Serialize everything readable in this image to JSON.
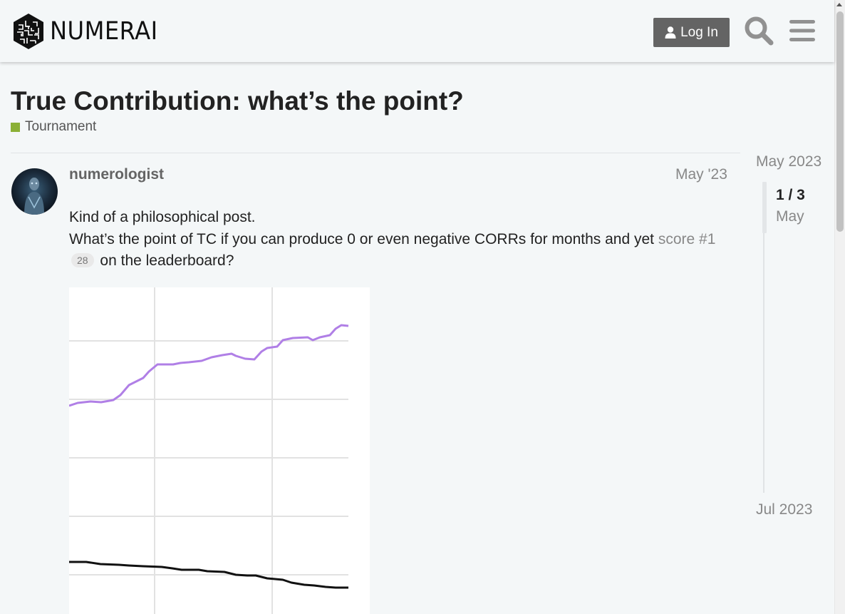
{
  "header": {
    "logo_text": "NUMERAI",
    "login_label": "Log In"
  },
  "topic": {
    "title": "True Contribution: what’s the point?",
    "category": "Tournament",
    "category_color": "#8bb036"
  },
  "post": {
    "username": "numerologist",
    "date": "May '23",
    "line1": "Kind of a philosophical post.",
    "line2_before": "What’s the point of TC if you can produce 0 or even negative CORRs for months and yet ",
    "link_text": "score #1",
    "link_clicks": "28",
    "line2_after": " on the leaderboard?"
  },
  "timeline": {
    "start_label": "May 2023",
    "position": "1 / 3",
    "current_date": "May",
    "end_label": "Jul 2023"
  },
  "colors": {
    "accent_button": "#646464",
    "chart_purple_line": "#b07fe6",
    "chart_black_line": "#111111"
  }
}
